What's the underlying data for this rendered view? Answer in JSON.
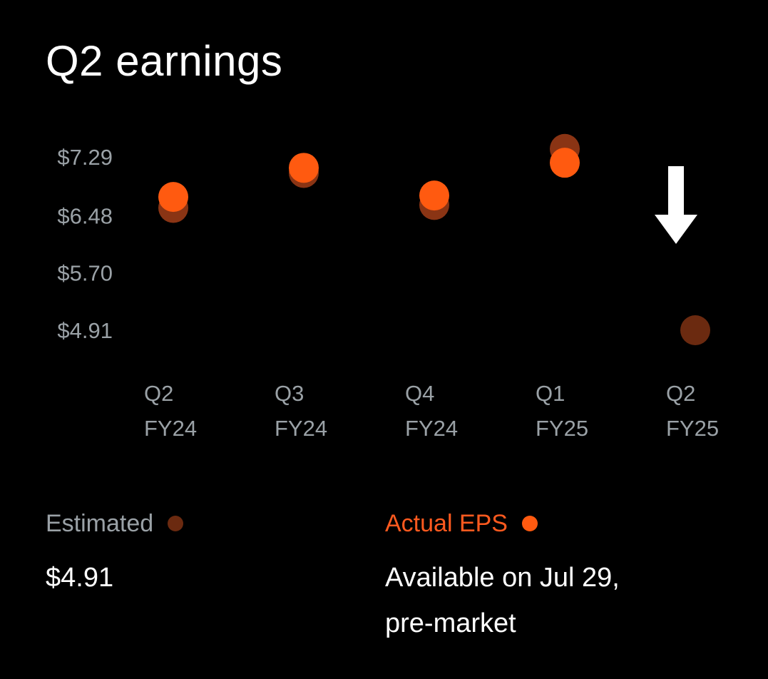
{
  "title": "Q2 earnings",
  "colors": {
    "actual": "#ff5a10",
    "estimated": "#6b2a10",
    "estimated_overlap": "#8a3414",
    "tick_text": "#9aa1a6",
    "estimated_label": "#9aa1a6",
    "actual_label": "#ff5a1f",
    "arrow": "#ffffff"
  },
  "legend": {
    "estimated": {
      "label": "Estimated",
      "value": "$4.91"
    },
    "actual": {
      "label": "Actual EPS",
      "value_line1": "Available on Jul 29,",
      "value_line2": "pre-market"
    }
  },
  "chart_data": {
    "type": "scatter",
    "title": "Q2 earnings",
    "categories": [
      [
        "Q2",
        "FY24"
      ],
      [
        "Q3",
        "FY24"
      ],
      [
        "Q4",
        "FY24"
      ],
      [
        "Q1",
        "FY25"
      ],
      [
        "Q2",
        "FY25"
      ]
    ],
    "y_ticks": [
      "$7.29",
      "$6.48",
      "$5.70",
      "$4.91"
    ],
    "y_tick_values": [
      7.29,
      6.48,
      5.7,
      4.91
    ],
    "ylim": [
      4.91,
      7.29
    ],
    "series": [
      {
        "name": "Estimated",
        "values": [
          6.59,
          7.07,
          6.63,
          7.4,
          4.91
        ]
      },
      {
        "name": "Actual EPS",
        "values": [
          6.74,
          7.14,
          6.76,
          7.21,
          null
        ]
      }
    ],
    "annotation": {
      "type": "arrow-down",
      "category_index": 4,
      "icon": "down-arrow-icon"
    },
    "grid": false,
    "legend_position": "bottom"
  }
}
